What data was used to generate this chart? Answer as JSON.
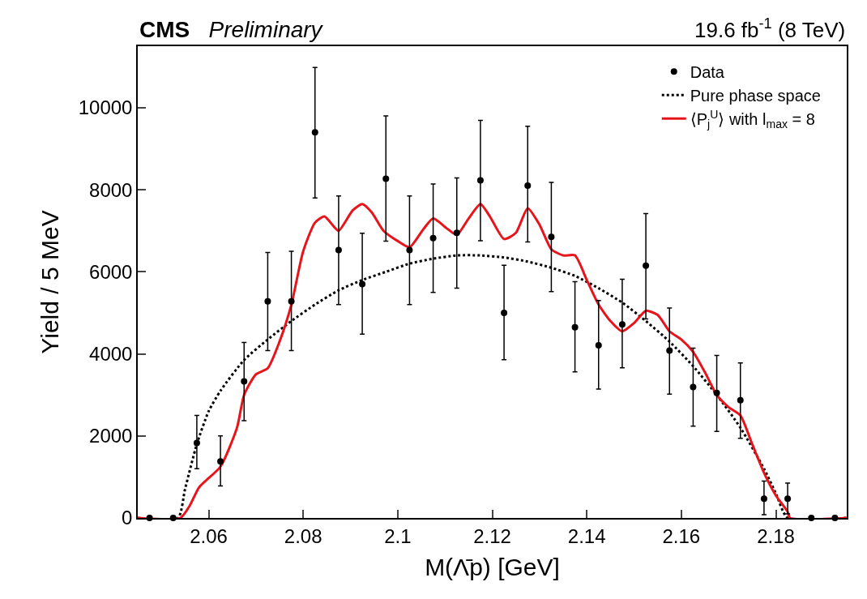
{
  "chart_data": {
    "type": "scatter",
    "title": "CMS",
    "subtitle": "Preliminary",
    "annotations": [
      "19.6 fb$^{-1}$ (8 TeV)"
    ],
    "xlabel": "M(Λ̄p) [GeV]",
    "ylabel": "Yield / 5 MeV",
    "xlim": [
      2.045,
      2.195
    ],
    "xticks": [
      2.06,
      2.08,
      {
        "value": 2.1,
        "label": "2.1"
      },
      2.12,
      2.14,
      2.16,
      2.18
    ],
    "ylim": [
      0,
      11500
    ],
    "yticks": [
      0,
      2000,
      4000,
      6000,
      8000,
      10000
    ],
    "legend": "top right",
    "series": [
      {
        "name": "Data",
        "color": "#000000",
        "marker": "circle",
        "x": [
          2.0475,
          2.0525,
          2.0575,
          2.0625,
          2.0675,
          2.0725,
          2.0775,
          2.0825,
          2.0875,
          2.0925,
          2.0975,
          2.1025,
          2.1075,
          2.1125,
          2.1175,
          2.1225,
          2.1275,
          2.1325,
          2.1375,
          2.1425,
          2.1475,
          2.1525,
          2.1575,
          2.1625,
          2.1675,
          2.1725,
          2.1775,
          2.1825,
          2.1875,
          2.1925
        ],
        "values": [
          0,
          0,
          1830,
          1380,
          3330,
          5280,
          5280,
          9400,
          6530,
          5700,
          8270,
          6530,
          6820,
          6950,
          8230,
          5000,
          8100,
          6850,
          4650,
          4210,
          4720,
          6150,
          4080,
          3190,
          3050,
          2870,
          470,
          470,
          0,
          0
        ],
        "errors": [
          null,
          null,
          [
            1200,
            2500
          ],
          [
            780,
            2000
          ],
          [
            2370,
            4280
          ],
          [
            4080,
            6470
          ],
          [
            4080,
            6500
          ],
          [
            7800,
            10980
          ],
          [
            5200,
            7850
          ],
          [
            4480,
            6940
          ],
          [
            6750,
            9800
          ],
          [
            5200,
            7850
          ],
          [
            5500,
            8140
          ],
          [
            5600,
            8290
          ],
          [
            6760,
            9690
          ],
          [
            3860,
            6160
          ],
          [
            6730,
            9550
          ],
          [
            5520,
            8180
          ],
          [
            3560,
            5760
          ],
          [
            3140,
            5300
          ],
          [
            3660,
            5820
          ],
          [
            4850,
            7420
          ],
          [
            3020,
            5120
          ],
          [
            2240,
            4140
          ],
          [
            2110,
            3960
          ],
          [
            1940,
            3780
          ],
          [
            80,
            900
          ],
          [
            100,
            850
          ],
          null,
          null
        ]
      },
      {
        "name": "Pure phase space",
        "type": "line",
        "color": "#000000",
        "line_style": "dotted",
        "marker": "none",
        "x": [
          2.045,
          2.0535,
          2.055,
          2.0575,
          2.06,
          2.0625,
          2.0675,
          2.0725,
          2.0775,
          2.0825,
          2.0875,
          2.0925,
          2.0975,
          2.1025,
          2.1075,
          2.1125,
          2.1175,
          2.1225,
          2.1275,
          2.1325,
          2.1375,
          2.1425,
          2.1475,
          2.1525,
          2.1575,
          2.1625,
          2.1675,
          2.1725,
          2.1775,
          2.18,
          2.1825,
          2.195
        ],
        "values": [
          0,
          0,
          700,
          1800,
          2600,
          3100,
          3850,
          4350,
          4800,
          5200,
          5550,
          5800,
          6000,
          6200,
          6320,
          6400,
          6400,
          6350,
          6250,
          6100,
          5900,
          5600,
          5250,
          4800,
          4300,
          3700,
          3000,
          2200,
          1200,
          600,
          0,
          0
        ]
      },
      {
        "name": "⟨P$_{j}$$^{U}$⟩ with l$_{max}$ = 8",
        "type": "line",
        "color": "#e8141b",
        "line_style": "solid",
        "marker": "none",
        "x": [
          2.045,
          2.054,
          2.056,
          2.058,
          2.0625,
          2.066,
          2.0675,
          2.07,
          2.0725,
          2.075,
          2.0775,
          2.08,
          2.0825,
          2.0845,
          2.0865,
          2.0875,
          2.0905,
          2.0925,
          2.0945,
          2.097,
          2.1,
          2.1025,
          2.1055,
          2.1075,
          2.1105,
          2.1125,
          2.115,
          2.1175,
          2.1195,
          2.1225,
          2.125,
          2.1275,
          2.13,
          2.1325,
          2.135,
          2.1375,
          2.14,
          2.1425,
          2.145,
          2.1475,
          2.15,
          2.1525,
          2.155,
          2.1575,
          2.16,
          2.1625,
          2.165,
          2.1675,
          2.17,
          2.1725,
          2.175,
          2.1775,
          2.18,
          2.1825,
          2.183,
          2.195
        ],
        "values": [
          0,
          0,
          300,
          750,
          1250,
          2200,
          3000,
          3500,
          3650,
          4300,
          5200,
          6500,
          7200,
          7350,
          7100,
          7000,
          7500,
          7650,
          7450,
          7000,
          6750,
          6600,
          7050,
          7300,
          7050,
          6900,
          7300,
          7650,
          7350,
          6800,
          6950,
          7550,
          7150,
          6550,
          6400,
          6400,
          5800,
          5200,
          4800,
          4550,
          4750,
          5050,
          4950,
          4550,
          4350,
          4050,
          3550,
          3000,
          2700,
          2500,
          1800,
          1100,
          550,
          150,
          0,
          0
        ]
      }
    ]
  }
}
